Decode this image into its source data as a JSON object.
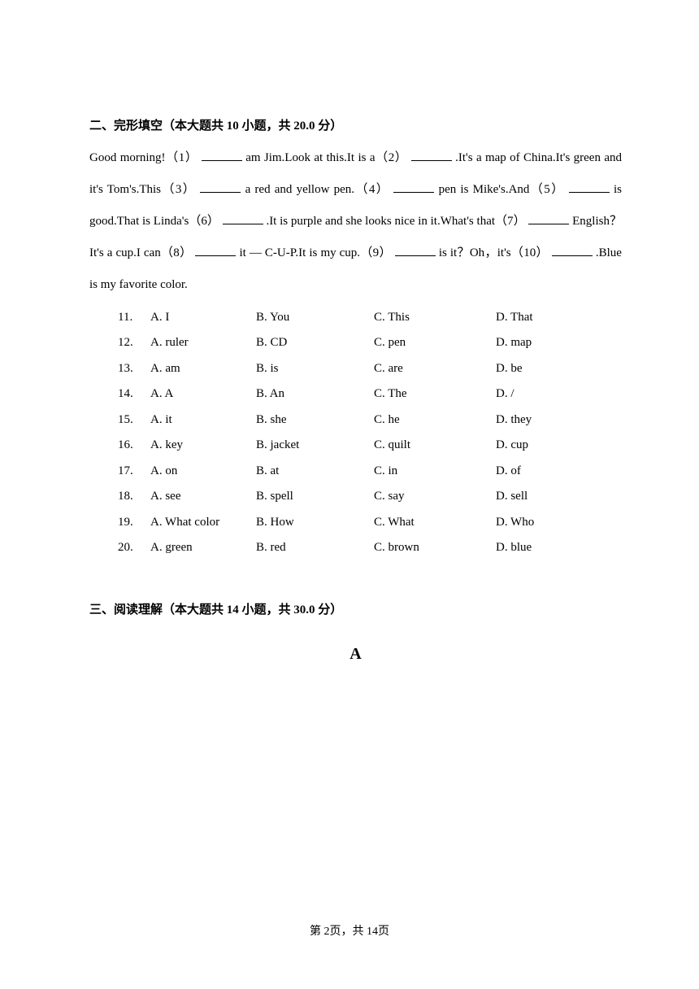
{
  "section2": {
    "title": "二、完形填空（本大题共 10 小题，共 20.0 分）",
    "passage_parts": {
      "p1": "Good morning!（1） ",
      "p2": " am Jim.Look at this.It is a（2） ",
      "p3": " .It's a map of China.It's green and",
      "p4": "it's Tom's.This（3） ",
      "p5": " a red and yellow pen.（4） ",
      "p6": " pen is Mike's.And（5） ",
      "p7": " is",
      "p8": "good.That is Linda's（6） ",
      "p9": " .It is purple and she looks nice in it.What's that（7） ",
      "p10": " English？",
      "p11": "It's a cup.I can（8） ",
      "p12": " it — C-U-P.It is my cup.（9） ",
      "p13": " is it？Oh，it's（10） ",
      "p14": " .Blue",
      "p15": "is my favorite color."
    },
    "questions": [
      {
        "num": "11.",
        "a": "A. I",
        "b": "B. You",
        "c": "C. This",
        "d": "D. That"
      },
      {
        "num": "12.",
        "a": "A. ruler",
        "b": "B. CD",
        "c": "C. pen",
        "d": "D. map"
      },
      {
        "num": "13.",
        "a": "A. am",
        "b": "B. is",
        "c": "C. are",
        "d": "D. be"
      },
      {
        "num": "14.",
        "a": "A. A",
        "b": "B. An",
        "c": "C. The",
        "d": "D. /"
      },
      {
        "num": "15.",
        "a": "A. it",
        "b": "B. she",
        "c": "C. he",
        "d": "D. they"
      },
      {
        "num": "16.",
        "a": "A. key",
        "b": "B. jacket",
        "c": "C. quilt",
        "d": "D. cup"
      },
      {
        "num": "17.",
        "a": "A. on",
        "b": "B. at",
        "c": "C. in",
        "d": "D. of"
      },
      {
        "num": "18.",
        "a": "A. see",
        "b": "B. spell",
        "c": "C. say",
        "d": "D. sell"
      },
      {
        "num": "19.",
        "a": "A. What color",
        "b": "B. How",
        "c": "C. What",
        "d": "D. Who"
      },
      {
        "num": "20.",
        "a": "A. green",
        "b": "B. red",
        "c": "C. brown",
        "d": "D. blue"
      }
    ]
  },
  "section3": {
    "title": "三、阅读理解（本大题共 14 小题，共 30.0 分）",
    "subheading": "A"
  },
  "footer": {
    "text": "第 2页，共 14页"
  }
}
